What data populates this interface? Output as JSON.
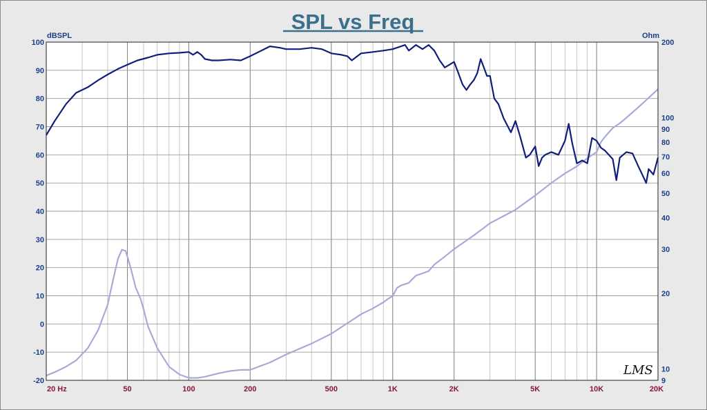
{
  "chart_data": {
    "type": "line",
    "title": "SPL vs Freq",
    "x_scale": "log",
    "xlim": [
      20,
      20000
    ],
    "x_ticks": [
      20,
      50,
      100,
      200,
      500,
      1000,
      2000,
      5000,
      10000,
      20000
    ],
    "x_tick_labels": [
      "20  Hz",
      "50",
      "100",
      "200",
      "500",
      "1K",
      "2K",
      "5K",
      "10K",
      "20K"
    ],
    "grid": true,
    "left_axis": {
      "unit": "dBSPL",
      "ylim": [
        -20,
        100
      ],
      "ticks": [
        100,
        90,
        80,
        70,
        60,
        50,
        40,
        30,
        20,
        10,
        0,
        -10,
        -20
      ],
      "tick_labels": [
        "100",
        "90",
        "80",
        "70",
        "60",
        "50",
        "40",
        "30",
        "20",
        "10",
        "0",
        "-10",
        "-20"
      ]
    },
    "right_axis": {
      "unit": "Ohm",
      "scale": "log",
      "ylim": [
        9,
        200
      ],
      "ticks": [
        200,
        100,
        90,
        80,
        70,
        60,
        50,
        40,
        30,
        20,
        10,
        9
      ],
      "tick_labels": [
        "200",
        "100",
        "90",
        "80",
        "70",
        "60",
        "50",
        "40",
        "30",
        "20",
        "10",
        "9"
      ]
    },
    "series": [
      {
        "axis": "left",
        "color": "#101d7a",
        "x": [
          20,
          22,
          25,
          28,
          32,
          36,
          40,
          45,
          50,
          56,
          63,
          70,
          80,
          90,
          100,
          105,
          110,
          115,
          120,
          130,
          140,
          160,
          180,
          200,
          220,
          250,
          280,
          300,
          350,
          400,
          450,
          500,
          560,
          600,
          630,
          700,
          800,
          900,
          1000,
          1100,
          1150,
          1200,
          1300,
          1400,
          1500,
          1600,
          1700,
          1800,
          1900,
          2000,
          2100,
          2200,
          2300,
          2400,
          2500,
          2600,
          2700,
          2800,
          2900,
          3000,
          3150,
          3300,
          3500,
          3800,
          4000,
          4200,
          4500,
          4700,
          5000,
          5200,
          5400,
          5600,
          6000,
          6500,
          7000,
          7300,
          7600,
          8000,
          8500,
          9000,
          9500,
          10000,
          10500,
          11000,
          12000,
          12500,
          13000,
          14000,
          15000,
          16000,
          17000,
          17500,
          18000,
          19000,
          20000
        ],
        "y": [
          67,
          72,
          78,
          82,
          84,
          86.5,
          88.5,
          90.5,
          92,
          93.5,
          94.5,
          95.5,
          96,
          96.2,
          96.5,
          95.5,
          96.5,
          95.5,
          94,
          93.5,
          93.5,
          93.8,
          93.5,
          95,
          96.5,
          98.5,
          98,
          97.5,
          97.5,
          98,
          97.5,
          96,
          95.5,
          95,
          93.5,
          96,
          96.5,
          97,
          97.5,
          98.5,
          99,
          97,
          99,
          97.5,
          99,
          97,
          93.5,
          91,
          92,
          93,
          89,
          85,
          83,
          85,
          86.5,
          89,
          94,
          91,
          88,
          88,
          80,
          78,
          73,
          68,
          72,
          67,
          59,
          60,
          63,
          56,
          59,
          60,
          61,
          60,
          65,
          71,
          64,
          57,
          58,
          57,
          66,
          65,
          62.5,
          61.5,
          58.5,
          51,
          59,
          61,
          60.5,
          56,
          52,
          50,
          55,
          53,
          59
        ]
      },
      {
        "axis": "right",
        "color": "#a9a9d6",
        "x": [
          20,
          22,
          25,
          28,
          32,
          36,
          40,
          43,
          45,
          47,
          49,
          50,
          52,
          55,
          58,
          60,
          63,
          70,
          80,
          90,
          100,
          110,
          120,
          140,
          160,
          180,
          200,
          250,
          300,
          400,
          500,
          600,
          700,
          800,
          900,
          950,
          1000,
          1050,
          1100,
          1200,
          1300,
          1400,
          1500,
          1600,
          1800,
          2000,
          2500,
          3000,
          4000,
          5000,
          6000,
          7000,
          8000,
          9000,
          10000,
          10500,
          11000,
          12000,
          13000,
          14000,
          15000,
          16000,
          17000,
          18000,
          19000,
          20000
        ],
        "y": [
          9.4,
          9.7,
          10.2,
          10.8,
          12.1,
          14.3,
          18,
          23.5,
          27.5,
          29.8,
          29.5,
          28,
          25,
          21,
          19,
          17.3,
          14.8,
          12.1,
          10.2,
          9.5,
          9.2,
          9.2,
          9.3,
          9.6,
          9.8,
          9.9,
          9.9,
          10.6,
          11.4,
          12.6,
          13.8,
          15.2,
          16.5,
          17.4,
          18.4,
          19,
          19.5,
          21,
          21.5,
          22,
          23.5,
          24,
          24.5,
          26,
          28,
          30,
          34,
          38,
          43,
          49,
          55,
          60,
          64,
          69,
          73,
          80,
          84,
          91,
          95,
          100,
          105,
          110,
          115,
          120,
          125,
          130
        ]
      }
    ]
  },
  "logo": "LMS"
}
